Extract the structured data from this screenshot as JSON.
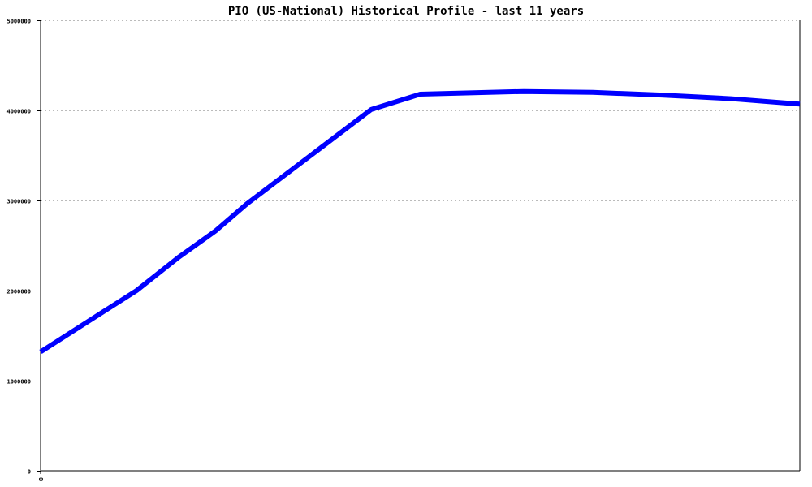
{
  "chart_data": {
    "type": "line",
    "title": "PIO (US-National) Historical Profile - last 11 years",
    "xlabel": "",
    "ylabel": "",
    "x_tick_labels": [
      "0"
    ],
    "y_ticks": [
      0,
      1000000,
      2000000,
      3000000,
      4000000,
      5000000
    ],
    "y_tick_labels": [
      "0",
      "1000000",
      "2000000",
      "3000000",
      "4000000",
      "5000000"
    ],
    "xlim": [
      0,
      11
    ],
    "ylim": [
      0,
      5000000
    ],
    "grid": true,
    "series": [
      {
        "color": "#0000ff",
        "x": [
          0,
          1,
          1.39,
          2,
          2.53,
          3,
          4,
          4.79,
          5.5,
          6.5,
          7,
          8,
          9,
          10,
          11
        ],
        "y": [
          1320000,
          1810000,
          2000000,
          2370000,
          2660000,
          2970000,
          3550000,
          4010000,
          4180000,
          4200000,
          4210000,
          4200000,
          4170000,
          4130000,
          4070000
        ]
      }
    ]
  }
}
